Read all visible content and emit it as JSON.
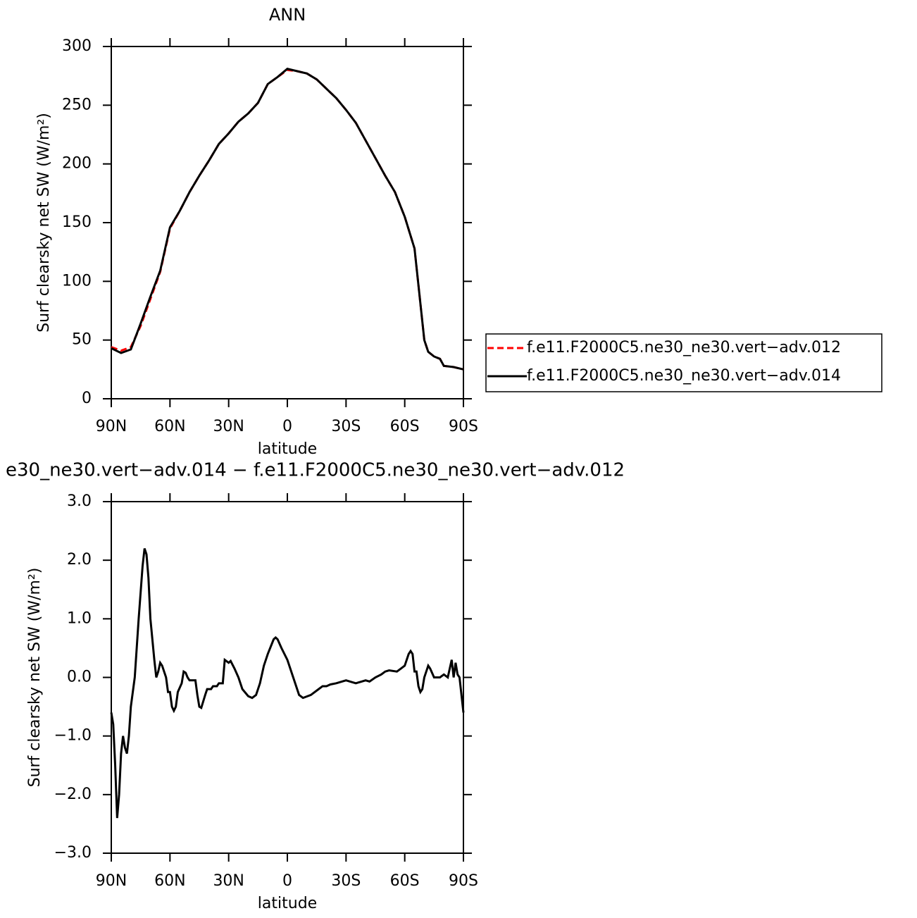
{
  "chart_data": [
    {
      "type": "line",
      "title": "ANN",
      "xlabel": "latitude",
      "ylabel": "Surf clearsky net SW (W/m²)",
      "x": [
        90,
        85,
        80,
        75,
        70,
        65,
        60,
        55,
        50,
        45,
        40,
        35,
        30,
        25,
        20,
        15,
        10,
        5,
        0,
        -5,
        -10,
        -15,
        -20,
        -25,
        -30,
        -35,
        -40,
        -45,
        -50,
        -55,
        -60,
        -65,
        -70,
        -72,
        -75,
        -78,
        -80,
        -85,
        -90
      ],
      "xlim": [
        90,
        -90
      ],
      "xticks": [
        {
          "value": 90,
          "label": "90N"
        },
        {
          "value": 60,
          "label": "60N"
        },
        {
          "value": 30,
          "label": "30N"
        },
        0,
        {
          "value": -30,
          "label": "30S"
        },
        {
          "value": -60,
          "label": "60S"
        },
        {
          "value": -90,
          "label": "90S"
        }
      ],
      "ylim": [
        0,
        300
      ],
      "yticks": [
        0,
        50,
        100,
        150,
        200,
        250,
        300
      ],
      "legend": "right",
      "series": [
        {
          "name": "f.e11.F2000C5.ne30_ne30.vert−adv.012",
          "color": "#ff0000",
          "dashed": true,
          "values": [
            44,
            41,
            44,
            62,
            85,
            108,
            145,
            160,
            176,
            190,
            203,
            217,
            226,
            236,
            243,
            252,
            268,
            274,
            280,
            279,
            277,
            272,
            264,
            256,
            246,
            235,
            220,
            205,
            190,
            176,
            155,
            128,
            50,
            40,
            36,
            34,
            28,
            27,
            25
          ]
        },
        {
          "name": "f.e11.F2000C5.ne30_ne30.vert−adv.014",
          "color": "#000000",
          "dashed": false,
          "values": [
            43,
            39,
            42,
            64,
            87,
            109,
            146,
            160,
            176,
            190,
            203,
            217,
            226,
            236,
            243,
            252,
            268,
            274,
            281,
            279,
            277,
            272,
            264,
            256,
            246,
            235,
            220,
            205,
            190,
            176,
            155,
            128,
            50,
            40,
            36,
            34,
            28,
            27,
            25
          ]
        }
      ]
    },
    {
      "type": "line",
      "title": "e30_ne30.vert−adv.014 − f.e11.F2000C5.ne30_ne30.vert−adv.012",
      "xlabel": "latitude",
      "ylabel": "Surf clearsky net SW (W/m²)",
      "x": [
        90,
        89,
        88,
        87,
        86,
        85,
        84,
        83,
        82,
        81,
        80,
        78,
        76,
        74,
        73,
        72,
        71,
        70,
        68,
        67,
        66,
        65,
        64,
        62,
        61,
        60,
        59,
        58,
        57,
        56,
        54,
        53,
        52,
        51,
        50,
        48,
        47,
        46,
        45,
        44,
        42,
        41,
        39,
        38,
        36,
        35,
        33,
        32,
        30,
        29,
        27,
        25,
        23,
        20,
        18,
        16,
        14,
        12,
        10,
        7,
        6,
        5,
        3,
        0,
        -3,
        -6,
        -8,
        -12,
        -16,
        -18,
        -20,
        -22,
        -25,
        -28,
        -30,
        -33,
        -35,
        -37,
        -40,
        -42,
        -45,
        -48,
        -50,
        -52,
        -56,
        -58,
        -60,
        -62,
        -63,
        -64,
        -65,
        -66,
        -67,
        -68,
        -69,
        -70,
        -71,
        -72,
        -73,
        -75,
        -76,
        -78,
        -80,
        -82,
        -84,
        -85,
        -86,
        -87,
        -88,
        -90
      ],
      "xlim": [
        90,
        -90
      ],
      "xticks": [
        {
          "value": 90,
          "label": "90N"
        },
        {
          "value": 60,
          "label": "60N"
        },
        {
          "value": 30,
          "label": "30N"
        },
        0,
        {
          "value": -30,
          "label": "30S"
        },
        {
          "value": -60,
          "label": "60S"
        },
        {
          "value": -90,
          "label": "90S"
        }
      ],
      "ylim": [
        -3,
        3
      ],
      "yticks": [
        {
          "value": -3,
          "label": "−3.0"
        },
        {
          "value": -2,
          "label": "−2.0"
        },
        {
          "value": -1,
          "label": "−1.0"
        },
        {
          "value": 0,
          "label": "0.0"
        },
        {
          "value": 1,
          "label": "1.0"
        },
        {
          "value": 2,
          "label": "2.0"
        },
        {
          "value": 3,
          "label": "3.0"
        }
      ],
      "series": [
        {
          "color": "#000000",
          "dashed": false,
          "values": [
            -0.6,
            -0.8,
            -1.5,
            -2.4,
            -2.0,
            -1.3,
            -1.0,
            -1.2,
            -1.3,
            -1.0,
            -0.5,
            0.0,
            1.0,
            1.9,
            2.2,
            2.1,
            1.7,
            1.0,
            0.3,
            0.0,
            0.1,
            0.25,
            0.2,
            0.0,
            -0.25,
            -0.25,
            -0.5,
            -0.57,
            -0.5,
            -0.25,
            -0.1,
            0.1,
            0.08,
            0.0,
            -0.05,
            -0.05,
            -0.05,
            -0.3,
            -0.5,
            -0.52,
            -0.3,
            -0.2,
            -0.2,
            -0.15,
            -0.15,
            -0.1,
            -0.1,
            0.3,
            0.25,
            0.28,
            0.15,
            0.0,
            -0.2,
            -0.32,
            -0.35,
            -0.3,
            -0.1,
            0.2,
            0.4,
            0.65,
            0.68,
            0.65,
            0.5,
            0.3,
            0.0,
            -0.3,
            -0.35,
            -0.3,
            -0.2,
            -0.15,
            -0.15,
            -0.12,
            -0.1,
            -0.07,
            -0.05,
            -0.08,
            -0.1,
            -0.08,
            -0.05,
            -0.07,
            0.0,
            0.05,
            0.1,
            0.12,
            0.1,
            0.15,
            0.2,
            0.4,
            0.45,
            0.4,
            0.1,
            0.1,
            -0.15,
            -0.25,
            -0.2,
            0.0,
            0.1,
            0.2,
            0.15,
            0.0,
            0.0,
            0.0,
            0.05,
            0.0,
            0.3,
            0.0,
            0.25,
            0.05,
            0.0,
            -0.6
          ]
        }
      ]
    }
  ]
}
